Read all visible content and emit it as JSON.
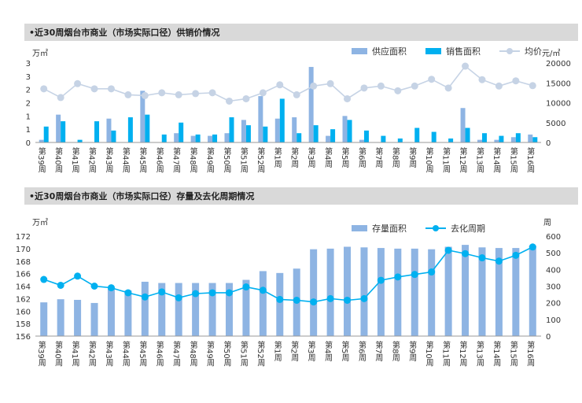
{
  "section1": {
    "title": "•近30周烟台市商业（市场实际口径）供销价情况"
  },
  "section2": {
    "title": "•近30周烟台市商业（市场实际口径）存量及去化周期情况"
  },
  "chart_data": [
    {
      "type": "bar+line",
      "categories": [
        "第39周",
        "第40周",
        "第41周",
        "第42周",
        "第43周",
        "第44周",
        "第45周",
        "第46周",
        "第47周",
        "第48周",
        "第49周",
        "第50周",
        "第51周",
        "第52周",
        "第1周",
        "第2周",
        "第3周",
        "第4周",
        "第5周",
        "第6周",
        "第7周",
        "第8周",
        "第9周",
        "第10周",
        "第11周",
        "第12周",
        "第13周",
        "第14周",
        "第15周",
        "第16周"
      ],
      "left_unit": "万㎡",
      "right_unit": "元/㎡",
      "left_ticks": [
        "0",
        "1",
        "1",
        "2",
        "2",
        "3",
        "3"
      ],
      "left_ylim": [
        0,
        3
      ],
      "right_ticks": [
        "0",
        "5000",
        "10000",
        "15000",
        "20000"
      ],
      "right_ylim": [
        0,
        20000
      ],
      "series": [
        {
          "name": "供应面积",
          "type": "bar",
          "axis": "left",
          "color": "#8eb4e3",
          "values": [
            0.1,
            1.05,
            0.0,
            0.0,
            0.9,
            0.0,
            1.95,
            0.0,
            0.35,
            0.25,
            0.25,
            0.35,
            0.85,
            1.75,
            0.9,
            0.95,
            2.85,
            0.25,
            1.0,
            0.1,
            0.0,
            0.0,
            0.0,
            0.0,
            0.0,
            1.3,
            0.1,
            0.1,
            0.2,
            0.3
          ]
        },
        {
          "name": "销售面积",
          "type": "bar",
          "axis": "left",
          "color": "#00b0f0",
          "values": [
            0.6,
            0.8,
            0.1,
            0.8,
            0.45,
            0.95,
            1.05,
            0.3,
            0.75,
            0.3,
            0.3,
            0.95,
            0.65,
            0.6,
            1.65,
            0.35,
            0.65,
            0.5,
            0.85,
            0.45,
            0.25,
            0.15,
            0.55,
            0.4,
            0.15,
            0.55,
            0.35,
            0.25,
            0.35,
            0.2
          ]
        },
        {
          "name": "均价",
          "type": "line",
          "axis": "right",
          "color": "#c6d3e5",
          "values": [
            13500,
            11300,
            14800,
            13500,
            13500,
            12000,
            11800,
            12500,
            12000,
            12300,
            12500,
            10400,
            11000,
            12500,
            14500,
            12000,
            14200,
            14800,
            11000,
            13700,
            14200,
            13000,
            14200,
            15900,
            13700,
            19200,
            15800,
            14200,
            15500,
            14300
          ]
        }
      ]
    },
    {
      "type": "bar+line",
      "categories": [
        "第39周",
        "第40周",
        "第41周",
        "第42周",
        "第43周",
        "第44周",
        "第45周",
        "第46周",
        "第47周",
        "第48周",
        "第49周",
        "第50周",
        "第51周",
        "第52周",
        "第1周",
        "第2周",
        "第3周",
        "第4周",
        "第5周",
        "第6周",
        "第7周",
        "第8周",
        "第9周",
        "第10周",
        "第11周",
        "第12周",
        "第13周",
        "第14周",
        "第15周",
        "第16周"
      ],
      "left_unit": "万㎡",
      "right_unit": "周",
      "left_ticks": [
        "156",
        "158",
        "160",
        "162",
        "164",
        "166",
        "168",
        "170",
        "172"
      ],
      "left_ylim": [
        156,
        172
      ],
      "right_ticks": [
        "0",
        "100",
        "200",
        "300",
        "400",
        "500",
        "600"
      ],
      "right_ylim": [
        0,
        600
      ],
      "series": [
        {
          "name": "存量面积",
          "type": "bar",
          "axis": "left",
          "color": "#8eb4e3",
          "values": [
            161.4,
            161.9,
            161.8,
            161.3,
            163.6,
            163.3,
            164.7,
            164.5,
            164.5,
            164.5,
            164.5,
            164.5,
            165.0,
            166.4,
            166.1,
            166.8,
            169.9,
            170.0,
            170.3,
            170.2,
            170.1,
            170.0,
            170.0,
            169.9,
            170.3,
            170.6,
            170.2,
            170.1,
            170.1,
            170.5
          ]
        },
        {
          "name": "去化周期",
          "type": "line",
          "axis": "right",
          "color": "#00b0f0",
          "values": [
            340,
            305,
            360,
            300,
            290,
            260,
            235,
            265,
            230,
            255,
            260,
            260,
            295,
            275,
            220,
            215,
            205,
            225,
            215,
            225,
            335,
            355,
            370,
            385,
            515,
            495,
            470,
            450,
            485,
            535
          ]
        }
      ]
    }
  ]
}
